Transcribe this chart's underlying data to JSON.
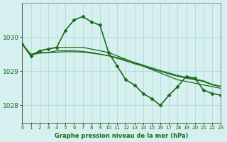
{
  "title": "Graphe pression niveau de la mer (hPa)",
  "bg_color": "#d6f0f0",
  "grid_color": "#b0d8d8",
  "line_color": "#1a6b1a",
  "marker_color": "#1a6b1a",
  "xlim": [
    0,
    23
  ],
  "ylim": [
    1027.5,
    1031.0
  ],
  "yticks": [
    1028,
    1029,
    1030
  ],
  "xticks": [
    0,
    1,
    2,
    3,
    4,
    5,
    6,
    7,
    8,
    9,
    10,
    11,
    12,
    13,
    14,
    15,
    16,
    17,
    18,
    19,
    20,
    21,
    22,
    23
  ],
  "series": [
    {
      "x": [
        0,
        1,
        2,
        3,
        4,
        5,
        6,
        7,
        8,
        9,
        10,
        11,
        12,
        13,
        14,
        15,
        16,
        17,
        18,
        19,
        20,
        21,
        22,
        23
      ],
      "y": [
        1029.8,
        1029.45,
        1029.6,
        1029.65,
        1029.7,
        1030.2,
        1030.5,
        1030.6,
        1030.45,
        1030.35,
        1029.55,
        1029.15,
        1028.75,
        1028.6,
        1028.35,
        1028.2,
        1028.0,
        1028.3,
        1028.55,
        1028.85,
        1028.8,
        1028.45,
        1028.35,
        1028.3
      ],
      "marker": "D",
      "linewidth": 1.2,
      "markersize": 2.5
    },
    {
      "x": [
        0,
        1,
        2,
        3,
        4,
        5,
        6,
        7,
        8,
        9,
        10,
        11,
        12,
        13,
        14,
        15,
        16,
        17,
        18,
        19,
        20,
        21,
        22,
        23
      ],
      "y": [
        1029.8,
        1029.45,
        1029.6,
        1029.65,
        1029.7,
        1029.7,
        1029.7,
        1029.7,
        1029.65,
        1029.6,
        1029.55,
        1029.45,
        1029.35,
        1029.25,
        1029.15,
        1029.05,
        1028.95,
        1028.85,
        1028.75,
        1028.7,
        1028.65,
        1028.6,
        1028.55,
        1028.5
      ],
      "marker": null,
      "linewidth": 0.9,
      "markersize": 0
    },
    {
      "x": [
        0,
        1,
        2,
        3,
        4,
        5,
        6,
        7,
        8,
        9,
        10,
        11,
        12,
        13,
        14,
        15,
        16,
        17,
        18,
        19,
        20,
        21,
        22,
        23
      ],
      "y": [
        1029.8,
        1029.5,
        1029.55,
        1029.55,
        1029.6,
        1029.6,
        1029.6,
        1029.58,
        1029.55,
        1029.5,
        1029.45,
        1029.38,
        1029.3,
        1029.22,
        1029.15,
        1029.07,
        1029.0,
        1028.92,
        1028.85,
        1028.8,
        1028.75,
        1028.7,
        1028.6,
        1028.55
      ],
      "marker": null,
      "linewidth": 0.9,
      "markersize": 0
    },
    {
      "x": [
        0,
        1,
        2,
        3,
        4,
        5,
        6,
        7,
        8,
        9,
        10,
        11,
        12,
        13,
        14,
        15,
        16,
        17,
        18,
        19,
        20,
        21,
        22,
        23
      ],
      "y": [
        1029.8,
        1029.47,
        1029.53,
        1029.54,
        1029.56,
        1029.57,
        1029.57,
        1029.56,
        1029.53,
        1029.5,
        1029.46,
        1029.4,
        1029.33,
        1029.26,
        1029.18,
        1029.1,
        1029.02,
        1028.95,
        1028.88,
        1028.82,
        1028.77,
        1028.72,
        1028.62,
        1028.56
      ],
      "marker": null,
      "linewidth": 0.9,
      "markersize": 0
    }
  ]
}
